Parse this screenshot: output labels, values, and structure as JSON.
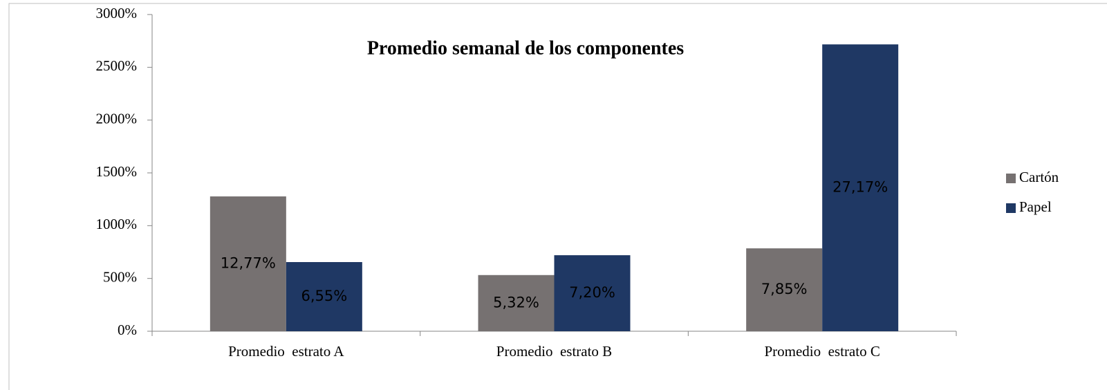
{
  "chart_data": {
    "type": "bar",
    "title": "Promedio semanal de los componentes",
    "categories": [
      "Promedio  estrato A",
      "Promedio  estrato B",
      "Promedio  estrato C"
    ],
    "series": [
      {
        "name": "Cartón",
        "color": "#767171",
        "values": [
          1277,
          532,
          785
        ],
        "value_labels": [
          "12,77%",
          "5,32%",
          "7,85%"
        ]
      },
      {
        "name": "Papel",
        "color": "#1f3864",
        "values": [
          655,
          720,
          2717
        ],
        "value_labels": [
          "6,55%",
          "7,20%",
          "27,17%"
        ]
      }
    ],
    "ylim": [
      0,
      3000
    ],
    "yticks": [
      {
        "value": 0,
        "label": "0%"
      },
      {
        "value": 500,
        "label": "500%"
      },
      {
        "value": 1000,
        "label": "1000%"
      },
      {
        "value": 1500,
        "label": "1500%"
      },
      {
        "value": 2000,
        "label": "2000%"
      },
      {
        "value": 2500,
        "label": "2500%"
      },
      {
        "value": 3000,
        "label": "3000%"
      }
    ],
    "legend": "right"
  }
}
